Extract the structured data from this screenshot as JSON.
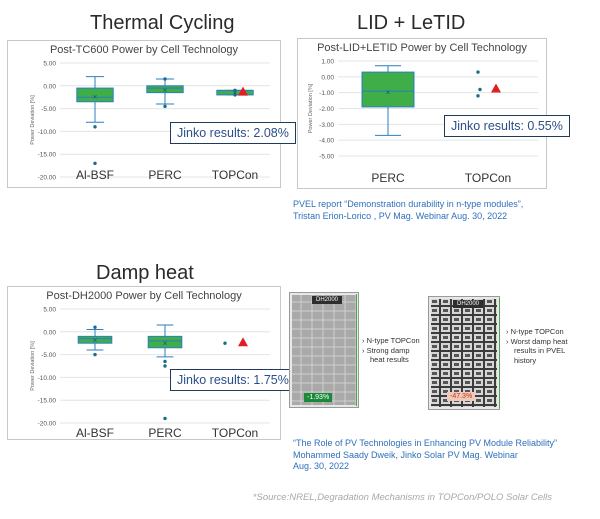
{
  "titles": {
    "tc": "Thermal Cycling",
    "lid": "LID + LeTID",
    "dh": "Damp heat"
  },
  "charts": {
    "tc": {
      "title": "Post-TC600 Power by Cell Technology",
      "jinko": "Jinko results: 2.08%",
      "ylabel": "Power Deviation [%]",
      "yticks": [
        "5.00",
        "0.00",
        "-5.00",
        "-10.00",
        "-15.00",
        "-20.00"
      ],
      "categories": [
        "Al-BSF",
        "PERC",
        "TOPCon"
      ]
    },
    "lid": {
      "title": "Post-LID+LETID Power by Cell Technology",
      "jinko": "Jinko results: 0.55%",
      "ylabel": "Power Deviation [%]",
      "yticks": [
        "1.00",
        "0.00",
        "-1.00",
        "-2.00",
        "-3.00",
        "-4.00",
        "-5.00"
      ],
      "categories": [
        "PERC",
        "TOPCon"
      ]
    },
    "dh": {
      "title": "Post-DH2000 Power by Cell Technology",
      "jinko": "Jinko results:  1.75%",
      "ylabel": "Power Deviation [%]",
      "yticks": [
        "5.00",
        "0.00",
        "-5.00",
        "-10.00",
        "-15.00",
        "-20.00"
      ],
      "categories": [
        "Al-BSF",
        "PERC",
        "TOPCon"
      ]
    }
  },
  "chart_data": [
    {
      "type": "box",
      "title": "Post-TC600 Power by Cell Technology",
      "ylabel": "Power Deviation [%]",
      "ylim": [
        -20,
        5
      ],
      "categories": [
        "Al-BSF",
        "PERC",
        "TOPCon"
      ],
      "boxes": [
        {
          "category": "Al-BSF",
          "min": -8.0,
          "q1": -3.5,
          "median": -2.5,
          "q3": -0.5,
          "max": 2.0,
          "mean": -2.3,
          "outliers": [
            -9.0,
            -17.0
          ]
        },
        {
          "category": "PERC",
          "min": -4.0,
          "q1": -1.5,
          "median": -0.5,
          "q3": 0.0,
          "max": 1.5,
          "mean": -0.9,
          "outliers": [
            -4.5,
            1.5
          ]
        },
        {
          "category": "TOPCon",
          "min": -2.0,
          "q1": -2.0,
          "median": -1.0,
          "q3": -1.0,
          "max": -1.0,
          "mean": -1.5,
          "outliers": [
            -1.0,
            -2.0
          ]
        }
      ],
      "jinko_marker": {
        "category": "TOPCon",
        "value": -1.5
      }
    },
    {
      "type": "box",
      "title": "Post-LID+LETID Power by Cell Technology",
      "ylabel": "Power Deviation [%]",
      "ylim": [
        -5,
        1
      ],
      "categories": [
        "PERC",
        "TOPCon"
      ],
      "boxes": [
        {
          "category": "PERC",
          "min": -3.7,
          "q1": -1.9,
          "median": -0.9,
          "q3": 0.3,
          "max": 0.7,
          "mean": -0.95
        },
        {
          "category": "TOPCon",
          "outliers": [
            0.3,
            -0.8,
            -1.2
          ]
        }
      ],
      "jinko_marker": {
        "category": "TOPCon",
        "value": -0.8
      }
    },
    {
      "type": "box",
      "title": "Post-DH2000 Power by Cell Technology",
      "ylabel": "Power Deviation [%]",
      "ylim": [
        -20,
        5
      ],
      "categories": [
        "Al-BSF",
        "PERC",
        "TOPCon"
      ],
      "boxes": [
        {
          "category": "Al-BSF",
          "min": -4.0,
          "q1": -2.5,
          "median": -1.5,
          "q3": -1.0,
          "max": 0.5,
          "mean": -1.8,
          "outliers": [
            1.0,
            -5.0
          ]
        },
        {
          "category": "PERC",
          "min": -5.5,
          "q1": -3.5,
          "median": -2.0,
          "q3": -1.0,
          "max": 1.5,
          "mean": -2.5,
          "outliers": [
            -6.5,
            -7.5,
            -19.0
          ]
        },
        {
          "category": "TOPCon",
          "outliers": [
            -2.5
          ]
        }
      ],
      "jinko_marker": {
        "category": "TOPCon",
        "value": -2.5
      }
    }
  ],
  "refs": {
    "pvel_line1": "PVEL report “Demonstration durability in n-type modules”,",
    "pvel_line2": "Tristan Erion-Lorico , PV Mag. Webinar Aug. 30, 2022",
    "role_line1": "“The Role of PV Technologies in Enhancing PV Module Reliability”",
    "role_line2": "Mohammed Saady Dweik, Jinko Solar PV Mag. Webinar",
    "role_line3": "Aug. 30, 2022"
  },
  "modules": {
    "left": {
      "badge": "DH2000",
      "pct": "-1.93%",
      "callout1": "N-type TOPCon",
      "callout2": "Strong damp",
      "callout3": "heat results"
    },
    "right": {
      "badge": "DH2000",
      "pct": "-47.3%",
      "callout1": "N-type TOPCon",
      "callout2": "Worst damp heat",
      "callout3": "results in PVEL",
      "callout4": "history"
    }
  },
  "source": "*Source:NREL,Degradation Mechanisms in TOPCon/POLO Solar Cells",
  "colors": {
    "box_fill": "#3fae49",
    "box_stroke": "#2b7fc3",
    "marker_red": "#e02020",
    "ref_blue": "#2f6fba"
  }
}
